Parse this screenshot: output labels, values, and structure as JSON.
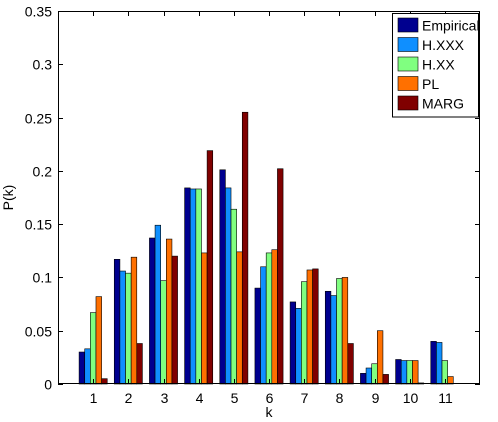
{
  "chart_data": {
    "type": "bar",
    "title": "",
    "xlabel": "k",
    "ylabel": "P(k)",
    "categories": [
      "1",
      "2",
      "3",
      "4",
      "5",
      "6",
      "7",
      "8",
      "9",
      "10",
      "11"
    ],
    "ylim": [
      0,
      0.35
    ],
    "yticks": [
      "0",
      "0.05",
      "0.1",
      "0.15",
      "0.2",
      "0.25",
      "0.3",
      "0.35"
    ],
    "grid": false,
    "legend_position": "top-right",
    "series": [
      {
        "name": "Empirical",
        "color": "#00008f",
        "values": [
          0.03,
          0.117,
          0.137,
          0.184,
          0.201,
          0.09,
          0.077,
          0.087,
          0.01,
          0.023,
          0.04
        ]
      },
      {
        "name": "H.XXX",
        "color": "#0f8fff",
        "values": [
          0.033,
          0.106,
          0.149,
          0.183,
          0.184,
          0.11,
          0.071,
          0.083,
          0.015,
          0.022,
          0.039
        ]
      },
      {
        "name": "H.XX",
        "color": "#80ff80",
        "values": [
          0.067,
          0.104,
          0.097,
          0.183,
          0.164,
          0.123,
          0.096,
          0.099,
          0.019,
          0.022,
          0.022
        ]
      },
      {
        "name": "PL",
        "color": "#ff7000",
        "values": [
          0.082,
          0.119,
          0.136,
          0.123,
          0.124,
          0.126,
          0.107,
          0.1,
          0.05,
          0.022,
          0.007
        ]
      },
      {
        "name": "MARG",
        "color": "#800000",
        "values": [
          0.005,
          0.038,
          0.12,
          0.219,
          0.255,
          0.202,
          0.108,
          0.038,
          0.009,
          0.001,
          0.0
        ]
      }
    ]
  }
}
